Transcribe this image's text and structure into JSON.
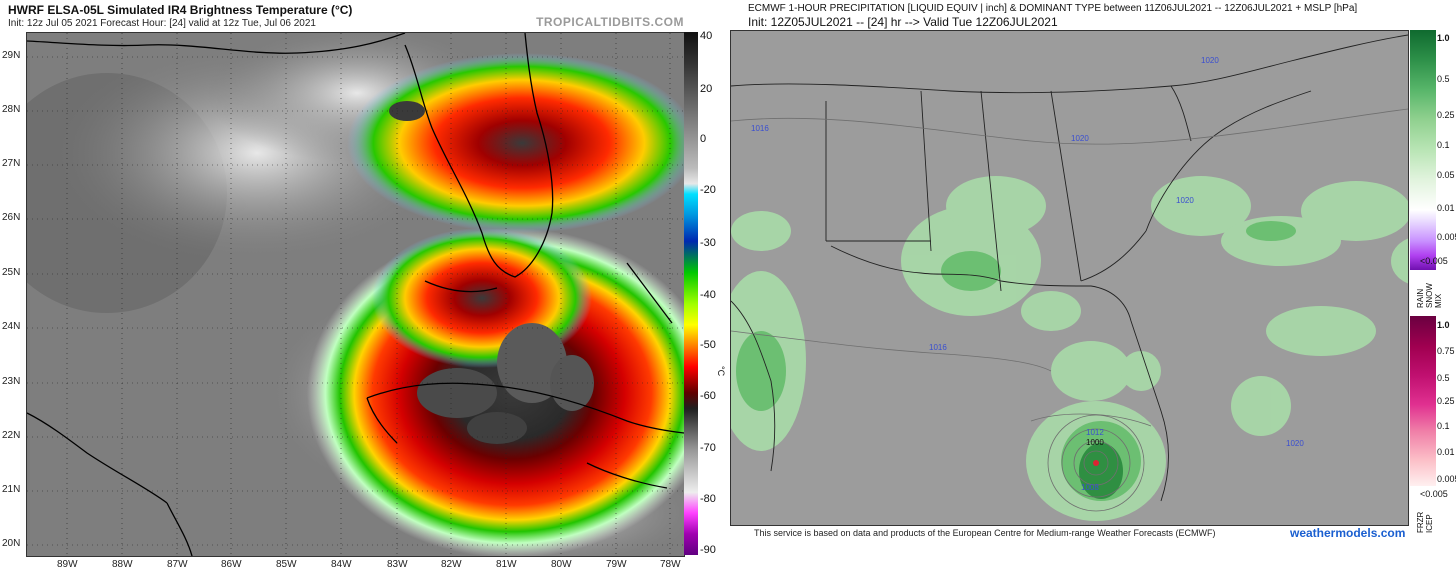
{
  "left": {
    "title": "HWRF ELSA-05L Simulated IR4 Brightness Temperature (°C)",
    "subtitle": "Init: 12z Jul 05 2021   Forecast Hour: [24]   valid at 12z Tue, Jul 06 2021",
    "watermark": "TROPICALTIDBITS.COM",
    "lat_labels": [
      "29N",
      "28N",
      "27N",
      "26N",
      "25N",
      "24N",
      "23N",
      "22N",
      "21N",
      "20N"
    ],
    "lon_labels": [
      "89W",
      "88W",
      "87W",
      "86W",
      "85W",
      "84W",
      "83W",
      "82W",
      "81W",
      "80W",
      "79W",
      "78W"
    ],
    "colorbar_ticks": [
      "40",
      "20",
      "0",
      "-20",
      "-30",
      "-40",
      "-50",
      "-60",
      "-70",
      "-80",
      "-90"
    ],
    "colorbar_unit": "°C"
  },
  "right": {
    "title": "ECMWF 1-HOUR PRECIPITATION [LIQUID EQUIV | inch] & DOMINANT TYPE between 11Z06JUL2021 -- 12Z06JUL2021 + MSLP [hPa]",
    "subtitle": "Init: 12Z05JUL2021 -- [24] hr --> Valid Tue 12Z06JUL2021",
    "isobars": [
      "1020",
      "1016",
      "1020",
      "1020",
      "1016",
      "1012",
      "1000",
      "1008",
      "1020"
    ],
    "rain_scale": [
      "1.0",
      "0.5",
      "0.25",
      "0.1",
      "0.05",
      "0.01",
      "0.005",
      "<0.005"
    ],
    "rain_scale_title": "RAIN SNOW MIX",
    "frzr_scale": [
      "1.0",
      "0.75",
      "0.5",
      "0.25",
      "0.1",
      "0.01",
      "0.005",
      "<0.005"
    ],
    "frzr_scale_title": "FRZR ICEP",
    "footer": "This service is based on data and products of the European Centre for Medium-range Weather Forecasts (ECMWF)",
    "brand": "weathermodels.com"
  },
  "colors": {
    "ir_gray": "#8a8a8a",
    "rain_green": "#3f9a55",
    "map_gray": "#9c9c9c",
    "brand_blue": "#1a5fd0",
    "isobar_blue": "#3a4fd0"
  }
}
